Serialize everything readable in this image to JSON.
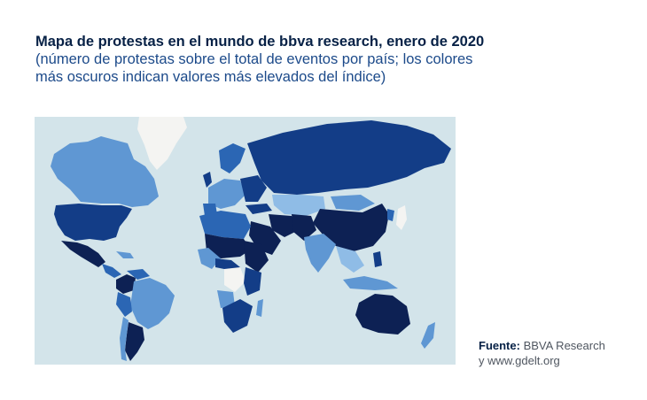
{
  "header": {
    "title": "Mapa de protestas en el mundo de bbva research, enero de 2020",
    "subtitle_line1": "(número de protestas sobre el total de eventos por país; los colores",
    "subtitle_line2": "más oscuros indican valores más elevados del índice)"
  },
  "source": {
    "label": "Fuente:",
    "line1": " BBVA Research",
    "line2": "y www.gdelt.org"
  },
  "colors": {
    "ocean": "#d3e4ea",
    "darkest": "#0d2154",
    "dark": "#133d87",
    "mid": "#2b66b4",
    "light": "#5f97d3",
    "lighter": "#8fbce6",
    "nodata": "#f4f4f2"
  }
}
